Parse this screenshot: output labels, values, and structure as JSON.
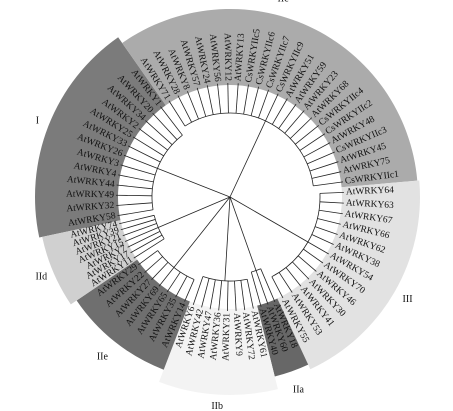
{
  "groups": [
    {
      "name": "I",
      "leaves": [
        "AtWRKY58",
        "AtWRKY32",
        "AtWRKY49",
        "AtWRKY44",
        "AtWRKY4",
        "AtWRKY3",
        "AtWRKY26",
        "AtWRKY33",
        "AtWRKY25",
        "AtWRKY2",
        "AtWRKY34",
        "AtWRKY20",
        "AtWRKY1"
      ]
    },
    {
      "name": "IIc",
      "leaves": [
        "AtWRKY71",
        "AtWRKY28",
        "AtWRKY8",
        "AtWRKY57",
        "AtWRKY24",
        "AtWRKY56",
        "AtWRKY12",
        "AtWRKY13",
        "CsWRKYIIc5",
        "CsWRKYIIc6",
        "CsWRKYIIc7",
        "CsWRKYIIc9",
        "AtWRKY51",
        "AtWRKY59",
        "AtWRKY23",
        "AtWRKY68",
        "CsWRKYIIc4",
        "CsWRKYIIc2",
        "AtWRKY48",
        "CsWRKYIIc3",
        "AtWRKY45",
        "AtWRKY75",
        "CsWRKYIIc1"
      ]
    },
    {
      "name": "III",
      "leaves": [
        "AtWRKY64",
        "AtWRKY63",
        "AtWRKY67",
        "AtWRKY66",
        "AtWRKY62",
        "AtWRKY38",
        "AtWRKY54",
        "AtWRKY70",
        "AtWRKY46",
        "AtWRKY30",
        "AtWRKY41",
        "AtWRKY53",
        "AtWRKY55"
      ]
    },
    {
      "name": "IIa",
      "leaves": [
        "AtWRKY18",
        "AtWRKY60",
        "AtWRKY40"
      ]
    },
    {
      "name": "IIb",
      "leaves": [
        "AtWRKY61",
        "AtWRKY72",
        "AtWRKY9",
        "AtWRKY31",
        "AtWRKY36",
        "AtWRKY47",
        "AtWRKY42",
        "AtWRKY6"
      ]
    },
    {
      "name": "IIe",
      "leaves": [
        "AtWRKY14",
        "AtWRKY35",
        "AtWRKY65",
        "AtWRKY69",
        "AtWRKY27",
        "AtWRKY22",
        "AtWRKY29"
      ]
    },
    {
      "name": "IId",
      "leaves": [
        "AtWRKY11",
        "AtWRKY17",
        "AtWRKY7",
        "AtWRKY15",
        "AtWRKY21",
        "AtWRKY39",
        "AtWRKY74"
      ]
    }
  ]
}
